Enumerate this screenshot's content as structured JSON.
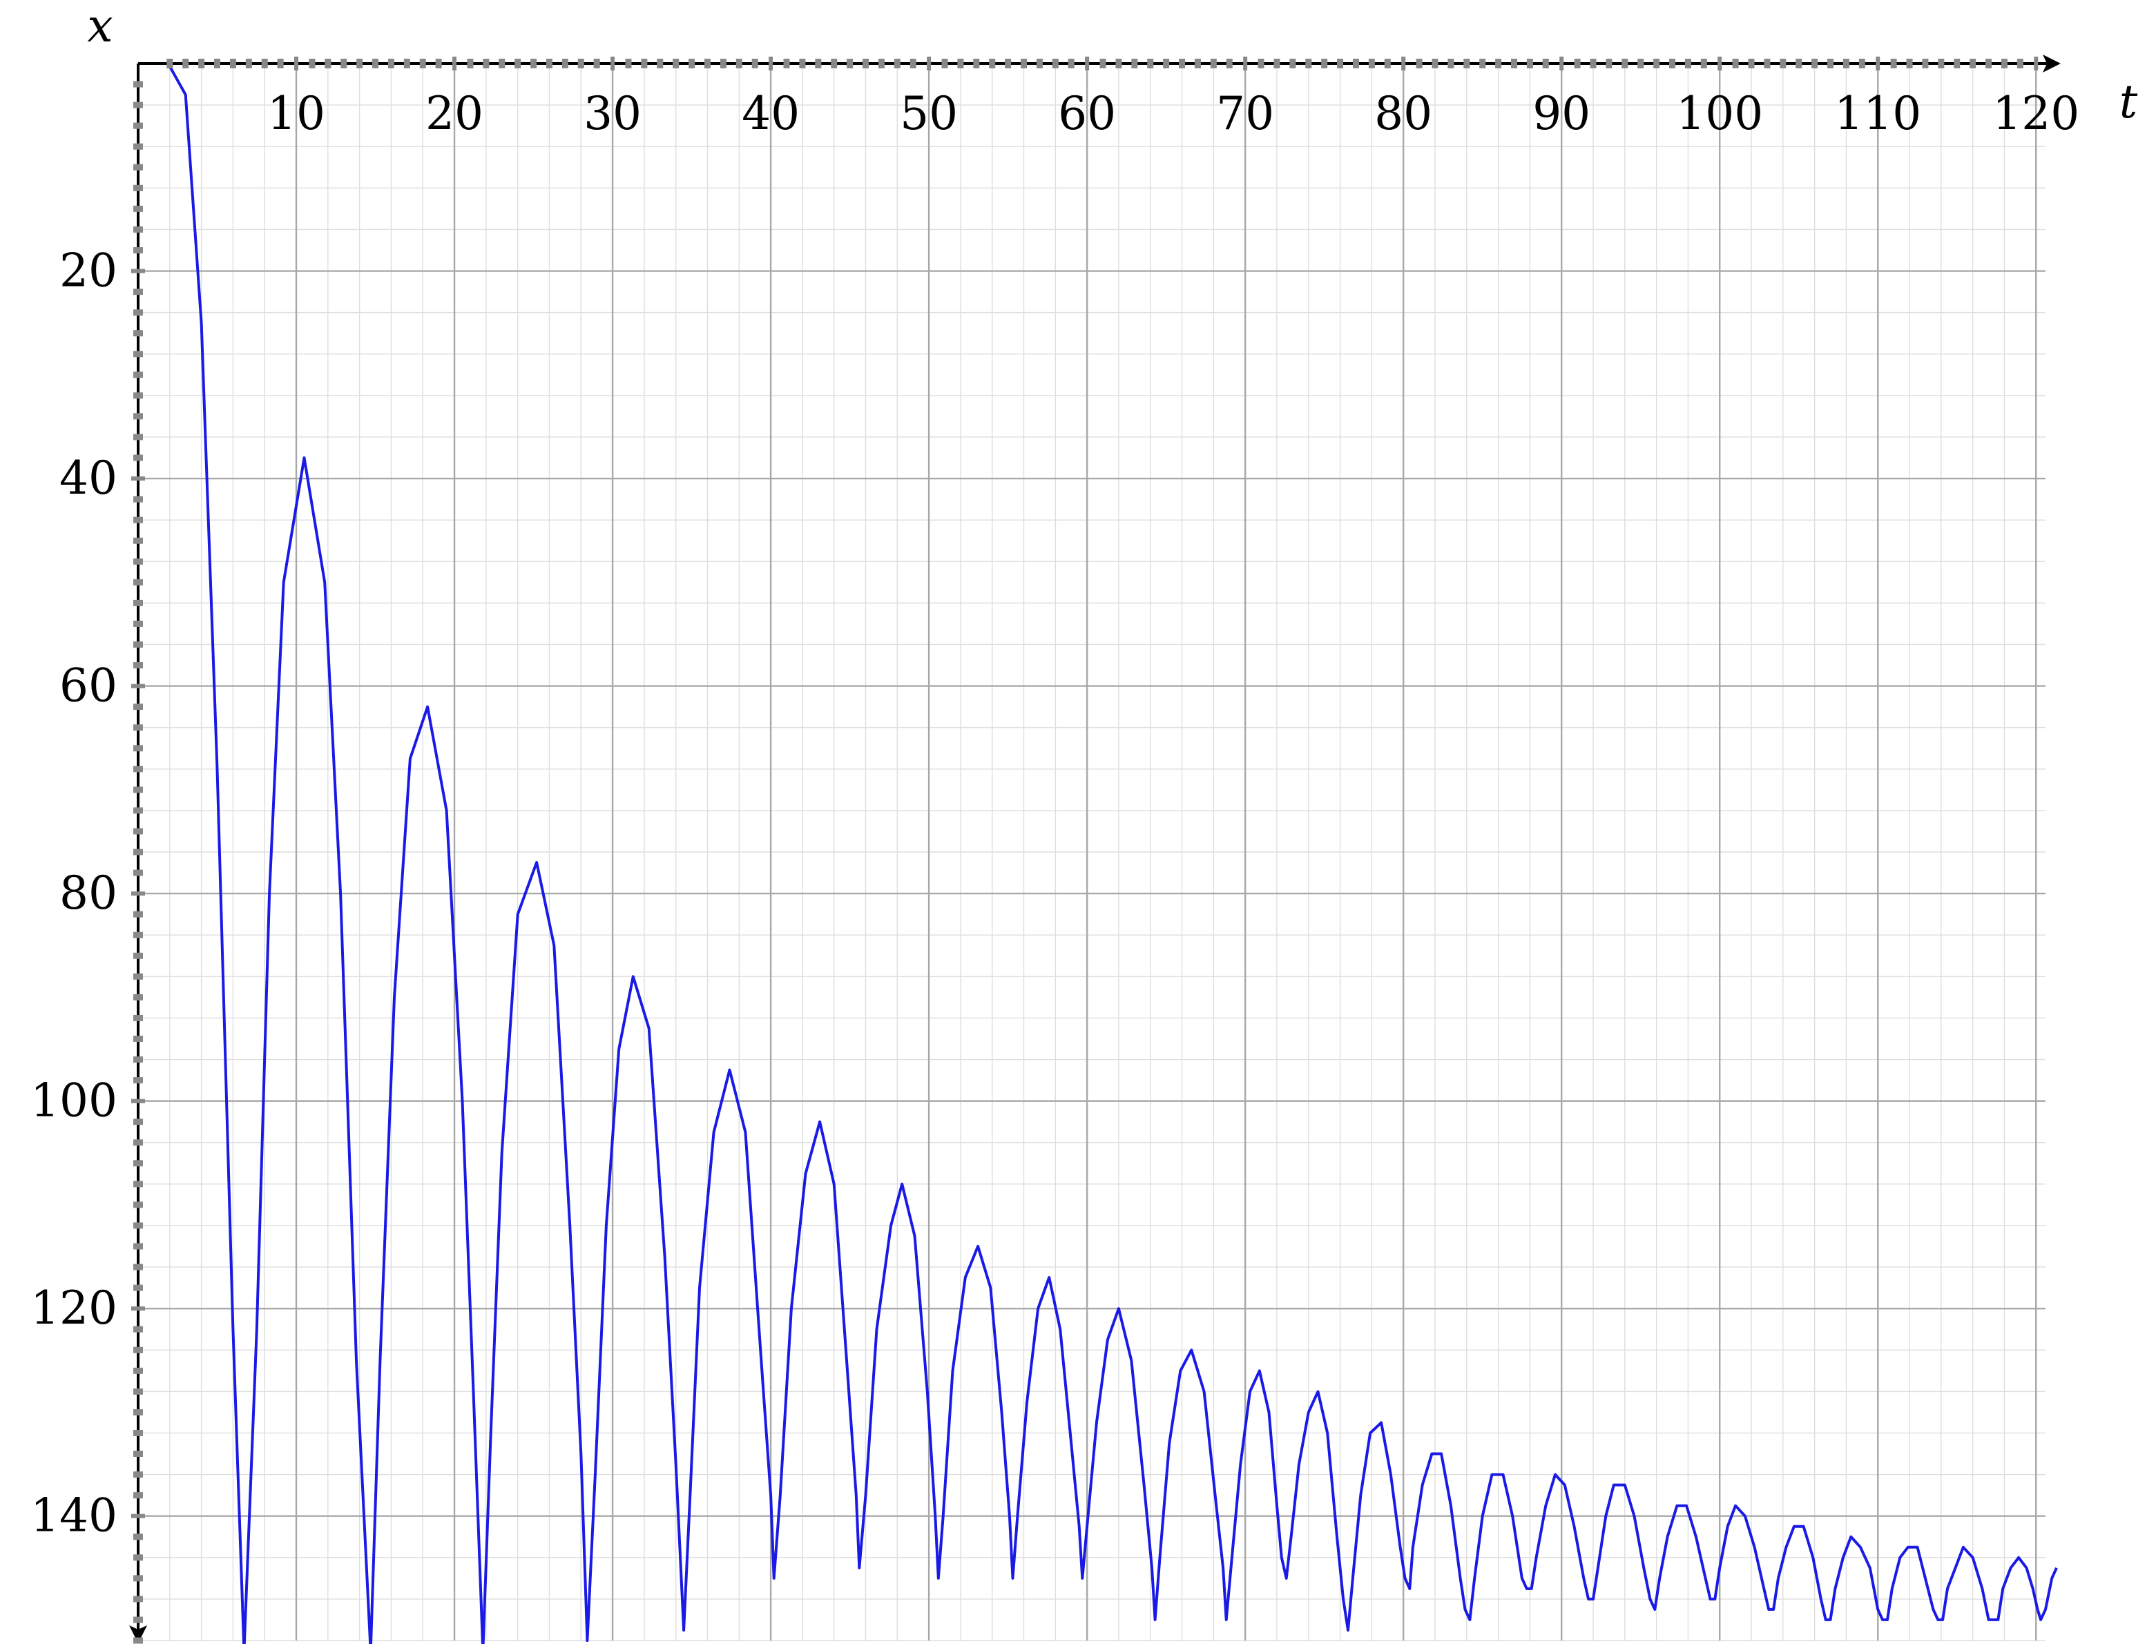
{
  "chart_data": {
    "type": "line",
    "title": "",
    "xlabel": "t",
    "ylabel": "x",
    "xlim": [
      0,
      120
    ],
    "ylim": [
      0,
      152
    ],
    "y_axis_inverted": true,
    "x_axis_position": "top",
    "grid": true,
    "x_ticks": [
      10,
      20,
      30,
      40,
      50,
      60,
      70,
      80,
      90,
      100,
      110,
      120
    ],
    "y_ticks": [
      20,
      40,
      60,
      80,
      100,
      120,
      140
    ],
    "x_tick_labels": [
      "10",
      "20",
      "30",
      "40",
      "50",
      "60",
      "70",
      "80",
      "90",
      "100",
      "110",
      "120"
    ],
    "y_tick_labels": [
      "20",
      "40",
      "60",
      "80",
      "100",
      "120",
      "140"
    ],
    "series": [
      {
        "color": "#1a1ae6",
        "points": [
          [
            1.9,
            0
          ],
          [
            3.0,
            3
          ],
          [
            4.0,
            25
          ],
          [
            5.0,
            68
          ],
          [
            6.0,
            122
          ],
          [
            6.7,
            153
          ],
          [
            7.5,
            122
          ],
          [
            8.3,
            80
          ],
          [
            9.2,
            50
          ],
          [
            10.5,
            38
          ],
          [
            11.8,
            50
          ],
          [
            12.8,
            80
          ],
          [
            13.8,
            125
          ],
          [
            14.7,
            153
          ],
          [
            15.3,
            125
          ],
          [
            16.2,
            90
          ],
          [
            17.2,
            67
          ],
          [
            18.3,
            62
          ],
          [
            19.5,
            72
          ],
          [
            20.5,
            100
          ],
          [
            21.2,
            128
          ],
          [
            21.8,
            153
          ],
          [
            22.3,
            132
          ],
          [
            23.0,
            105
          ],
          [
            24.0,
            82
          ],
          [
            25.2,
            77
          ],
          [
            26.3,
            85
          ],
          [
            27.3,
            112
          ],
          [
            28.0,
            134
          ],
          [
            28.4,
            152
          ],
          [
            28.9,
            136
          ],
          [
            29.6,
            112
          ],
          [
            30.4,
            95
          ],
          [
            31.3,
            88
          ],
          [
            32.3,
            93
          ],
          [
            33.3,
            115
          ],
          [
            34.0,
            135
          ],
          [
            34.5,
            151
          ],
          [
            34.9,
            138
          ],
          [
            35.5,
            118
          ],
          [
            36.4,
            103
          ],
          [
            37.4,
            97
          ],
          [
            38.4,
            103
          ],
          [
            39.4,
            125
          ],
          [
            40.0,
            138
          ],
          [
            40.2,
            146
          ],
          [
            40.6,
            138
          ],
          [
            41.3,
            120
          ],
          [
            42.2,
            107
          ],
          [
            43.1,
            102
          ],
          [
            44.0,
            108
          ],
          [
            44.8,
            125
          ],
          [
            45.4,
            138
          ],
          [
            45.6,
            145
          ],
          [
            46.0,
            138
          ],
          [
            46.7,
            122
          ],
          [
            47.6,
            112
          ],
          [
            48.3,
            108
          ],
          [
            49.1,
            113
          ],
          [
            49.9,
            128
          ],
          [
            50.4,
            140
          ],
          [
            50.6,
            146
          ],
          [
            50.9,
            140
          ],
          [
            51.5,
            126
          ],
          [
            52.3,
            117
          ],
          [
            53.1,
            114
          ],
          [
            53.9,
            118
          ],
          [
            54.6,
            130
          ],
          [
            55.1,
            140
          ],
          [
            55.3,
            146
          ],
          [
            55.6,
            140
          ],
          [
            56.2,
            129
          ],
          [
            56.9,
            120
          ],
          [
            57.6,
            117
          ],
          [
            58.3,
            122
          ],
          [
            59.0,
            133
          ],
          [
            59.5,
            141
          ],
          [
            59.7,
            146
          ],
          [
            60.0,
            141
          ],
          [
            60.6,
            131
          ],
          [
            61.3,
            123
          ],
          [
            62.0,
            120
          ],
          [
            62.8,
            125
          ],
          [
            63.6,
            137
          ],
          [
            64.1,
            145
          ],
          [
            64.3,
            150
          ],
          [
            64.6,
            144
          ],
          [
            65.2,
            133
          ],
          [
            65.9,
            126
          ],
          [
            66.6,
            124
          ],
          [
            67.4,
            128
          ],
          [
            68.1,
            138
          ],
          [
            68.6,
            145
          ],
          [
            68.8,
            150
          ],
          [
            69.1,
            145
          ],
          [
            69.7,
            135
          ],
          [
            70.3,
            128
          ],
          [
            70.9,
            126
          ],
          [
            71.5,
            130
          ],
          [
            72.0,
            139
          ],
          [
            72.3,
            144
          ],
          [
            72.6,
            146
          ],
          [
            72.9,
            142
          ],
          [
            73.4,
            135
          ],
          [
            74.0,
            130
          ],
          [
            74.6,
            128
          ],
          [
            75.2,
            132
          ],
          [
            75.8,
            142
          ],
          [
            76.2,
            148
          ],
          [
            76.5,
            151
          ],
          [
            76.8,
            146
          ],
          [
            77.3,
            138
          ],
          [
            77.9,
            132
          ],
          [
            78.6,
            131
          ],
          [
            79.2,
            136
          ],
          [
            79.8,
            143
          ],
          [
            80.1,
            146
          ],
          [
            80.4,
            147
          ],
          [
            80.6,
            143
          ],
          [
            81.2,
            137
          ],
          [
            81.8,
            134
          ],
          [
            82.4,
            134
          ],
          [
            83.0,
            139
          ],
          [
            83.6,
            146
          ],
          [
            83.9,
            149
          ],
          [
            84.2,
            150
          ],
          [
            84.5,
            146
          ],
          [
            85.0,
            140
          ],
          [
            85.6,
            136
          ],
          [
            86.3,
            136
          ],
          [
            86.9,
            140
          ],
          [
            87.5,
            146
          ],
          [
            87.8,
            147
          ],
          [
            88.1,
            147
          ],
          [
            88.4,
            144
          ],
          [
            89.0,
            139
          ],
          [
            89.6,
            136
          ],
          [
            90.2,
            137
          ],
          [
            90.8,
            141
          ],
          [
            91.4,
            146
          ],
          [
            91.7,
            148
          ],
          [
            92.0,
            148
          ],
          [
            92.3,
            145
          ],
          [
            92.8,
            140
          ],
          [
            93.3,
            137
          ],
          [
            94.0,
            137
          ],
          [
            94.6,
            140
          ],
          [
            95.2,
            145
          ],
          [
            95.6,
            148
          ],
          [
            95.9,
            149
          ],
          [
            96.2,
            146
          ],
          [
            96.7,
            142
          ],
          [
            97.3,
            139
          ],
          [
            97.9,
            139
          ],
          [
            98.5,
            142
          ],
          [
            99.1,
            146
          ],
          [
            99.4,
            148
          ],
          [
            99.7,
            148
          ],
          [
            100.0,
            145
          ],
          [
            100.5,
            141
          ],
          [
            101.0,
            139
          ],
          [
            101.6,
            140
          ],
          [
            102.2,
            143
          ],
          [
            102.8,
            147
          ],
          [
            103.1,
            149
          ],
          [
            103.4,
            149
          ],
          [
            103.7,
            146
          ],
          [
            104.2,
            143
          ],
          [
            104.7,
            141
          ],
          [
            105.3,
            141
          ],
          [
            105.9,
            144
          ],
          [
            106.4,
            148
          ],
          [
            106.7,
            150
          ],
          [
            107.0,
            150
          ],
          [
            107.3,
            147
          ],
          [
            107.8,
            144
          ],
          [
            108.3,
            142
          ],
          [
            108.9,
            143
          ],
          [
            109.5,
            145
          ],
          [
            110.0,
            149
          ],
          [
            110.3,
            150
          ],
          [
            110.6,
            150
          ],
          [
            110.9,
            147
          ],
          [
            111.4,
            144
          ],
          [
            111.9,
            143
          ],
          [
            112.5,
            143
          ],
          [
            113.0,
            146
          ],
          [
            113.5,
            149
          ],
          [
            113.8,
            150
          ],
          [
            114.1,
            150
          ],
          [
            114.4,
            147
          ],
          [
            114.9,
            145
          ],
          [
            115.4,
            143
          ],
          [
            116.0,
            144
          ],
          [
            116.6,
            147
          ],
          [
            117.0,
            150
          ],
          [
            117.3,
            150
          ],
          [
            117.6,
            150
          ],
          [
            117.9,
            147
          ],
          [
            118.4,
            145
          ],
          [
            118.9,
            144
          ],
          [
            119.4,
            145
          ],
          [
            119.8,
            147
          ],
          [
            120.1,
            149
          ],
          [
            120.3,
            150
          ],
          [
            120.6,
            149
          ],
          [
            121.0,
            146
          ],
          [
            121.3,
            145
          ]
        ]
      }
    ]
  }
}
